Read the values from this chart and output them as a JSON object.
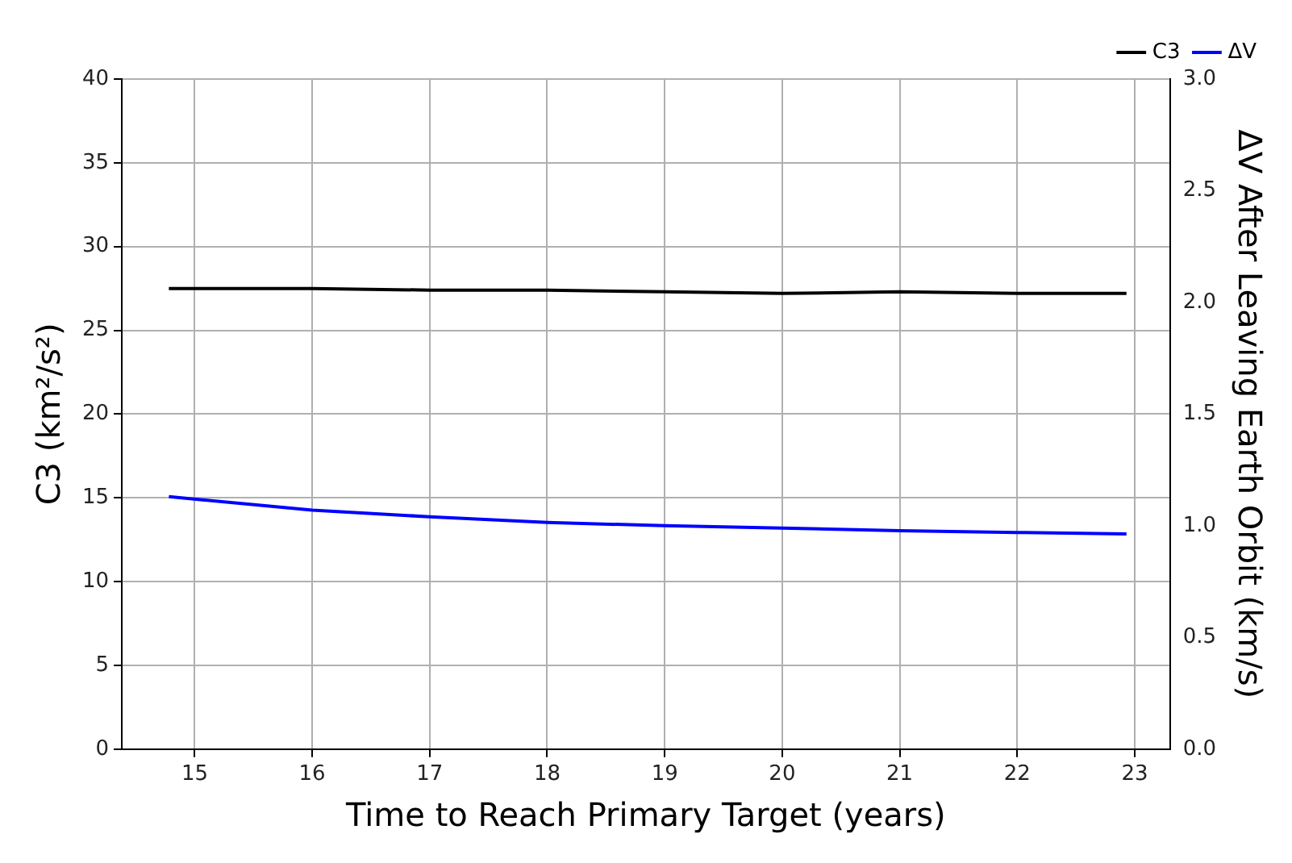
{
  "chart_data": {
    "type": "line",
    "xlabel": "Time to Reach Primary Target (years)",
    "ylabel": "C3 (km²/s²)",
    "y2label": "ΔV After Leaving Earth Orbit (km/s)",
    "x": [
      14.78,
      16,
      17,
      18,
      19,
      20,
      21,
      22,
      22.93
    ],
    "series": [
      {
        "name": "C3",
        "color": "#000000",
        "values": [
          27.5,
          27.5,
          27.4,
          27.4,
          27.3,
          27.2,
          27.3,
          27.2,
          27.2
        ]
      },
      {
        "name": "ΔV",
        "color": "#0000ff",
        "axis": "y2",
        "values": [
          1.13,
          1.07,
          1.04,
          1.015,
          1.0,
          0.99,
          0.978,
          0.97,
          0.963
        ]
      }
    ],
    "xlim": [
      14.38,
      23.3
    ],
    "xticks": [
      15,
      16,
      17,
      18,
      19,
      20,
      21,
      22,
      23
    ],
    "ylim": [
      0,
      40
    ],
    "yticks": [
      0,
      5,
      10,
      15,
      20,
      25,
      30,
      35,
      40
    ],
    "y2lim": [
      0,
      3
    ],
    "y2ticks": [
      {
        "value": 0,
        "label": "0.0"
      },
      {
        "value": 0.5,
        "label": "0.5"
      },
      {
        "value": 1,
        "label": "1.0"
      },
      {
        "value": 1.5,
        "label": "1.5"
      },
      {
        "value": 2,
        "label": "2.0"
      },
      {
        "value": 2.5,
        "label": "2.5"
      },
      {
        "value": 3,
        "label": "3.0"
      }
    ],
    "grid": true,
    "legend": "top right",
    "marker": "none",
    "line_style": "solid"
  }
}
